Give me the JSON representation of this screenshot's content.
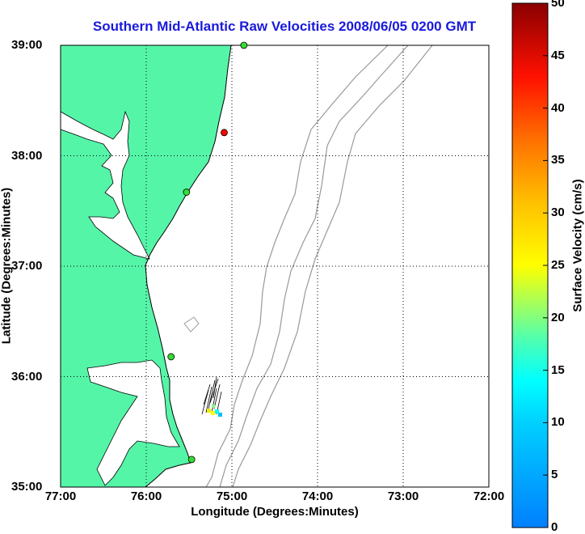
{
  "title": "Southern Mid-Atlantic Raw Velocities 2008/06/05 0200 GMT",
  "chart_data": {
    "type": "map",
    "xlabel": "Longitude (Degrees:Minutes)",
    "ylabel": "Latitude (Degrees:Minutes)",
    "x_ticks": [
      "77:00",
      "76:00",
      "75:00",
      "74:00",
      "73:00",
      "72:00"
    ],
    "y_ticks": [
      "39:00",
      "38:00",
      "37:00",
      "36:00",
      "35:00"
    ],
    "xlim": [
      -77,
      -72
    ],
    "ylim": [
      35,
      39
    ],
    "grid": "dotted",
    "colorbar": {
      "label": "Surface Velocity (cm/s)",
      "range": [
        0,
        50
      ],
      "ticks": [
        "0",
        "5",
        "10",
        "15",
        "20",
        "25",
        "30",
        "35",
        "40",
        "45",
        "50"
      ],
      "colormap": "jet"
    },
    "colors": {
      "land": "#55f5a8",
      "coast": "#000000",
      "bathymetry": "#999999",
      "grid": "#000000"
    },
    "stations": [
      {
        "lon": -74.86,
        "lat": 39.0,
        "color": "#33dd33"
      },
      {
        "lon": -75.09,
        "lat": 38.21,
        "color": "#ff0000"
      },
      {
        "lon": -75.53,
        "lat": 37.67,
        "color": "#33dd33"
      },
      {
        "lon": -75.71,
        "lat": 36.18,
        "color": "#33dd33"
      },
      {
        "lon": -75.47,
        "lat": 35.25,
        "color": "#33dd33"
      }
    ]
  }
}
